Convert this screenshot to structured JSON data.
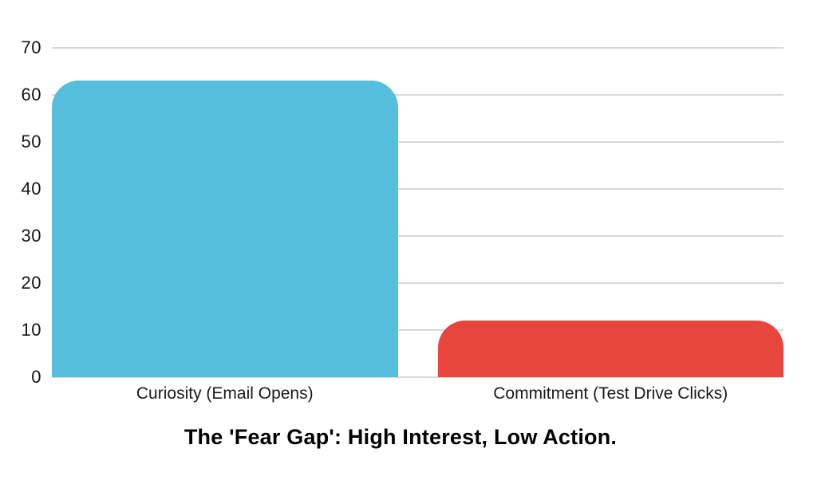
{
  "chart_data": {
    "type": "bar",
    "categories": [
      "Curiosity (Email Opens)",
      "Commitment (Test Drive Clicks)"
    ],
    "values": [
      63,
      12
    ],
    "bar_colors": [
      "#55BEDC",
      "#E8463C"
    ],
    "title": "The 'Fear Gap': High Interest, Low Action.",
    "xlabel": "",
    "ylabel": "",
    "ylim": [
      0,
      70
    ],
    "yticks": [
      0,
      10,
      20,
      30,
      40,
      50,
      60,
      70
    ],
    "grid": "horizontal",
    "gridline_color": "#d9d9d9",
    "text_color": "#1a1a1a",
    "background_color": "#ffffff",
    "legend": "none"
  }
}
